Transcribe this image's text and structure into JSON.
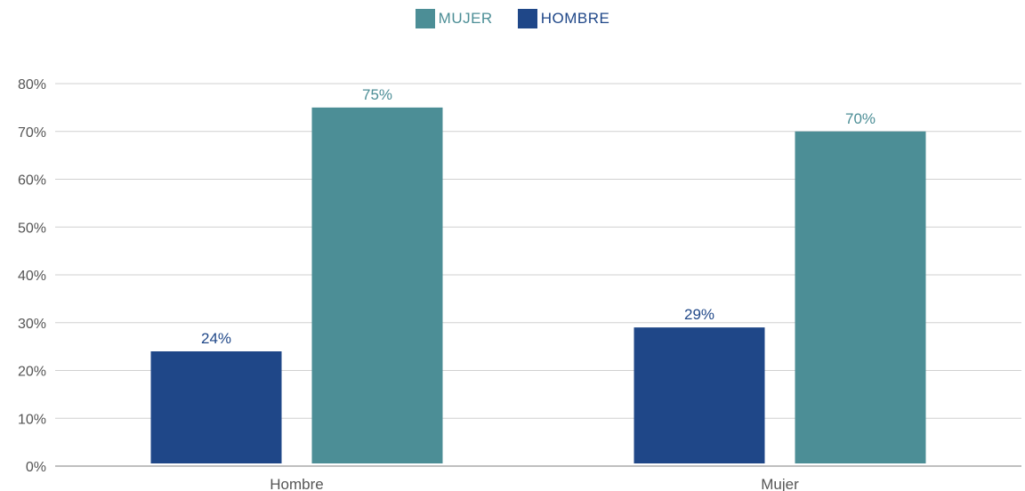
{
  "chart_data": {
    "type": "bar",
    "categories": [
      "Hombre",
      "Mujer"
    ],
    "series": [
      {
        "name": "HOMBRE",
        "values": [
          24,
          29
        ],
        "color": "#1f4788"
      },
      {
        "name": "MUJER",
        "values": [
          75,
          70
        ],
        "color": "#4c8e96"
      }
    ],
    "data_labels": [
      [
        "24%",
        "29%"
      ],
      [
        "75%",
        "70%"
      ]
    ],
    "ylim": [
      0,
      80
    ],
    "y_ticks": [
      0,
      10,
      20,
      30,
      40,
      50,
      60,
      70,
      80
    ],
    "y_tick_labels": [
      "0%",
      "10%",
      "20%",
      "30%",
      "40%",
      "50%",
      "60%",
      "70%",
      "80%"
    ],
    "title": "",
    "xlabel": "",
    "ylabel": "",
    "grid": true,
    "legend_position": "top-center"
  },
  "legend": {
    "items": [
      {
        "label": "MUJER",
        "color": "#4c8e96"
      },
      {
        "label": "HOMBRE",
        "color": "#1f4788"
      }
    ]
  }
}
